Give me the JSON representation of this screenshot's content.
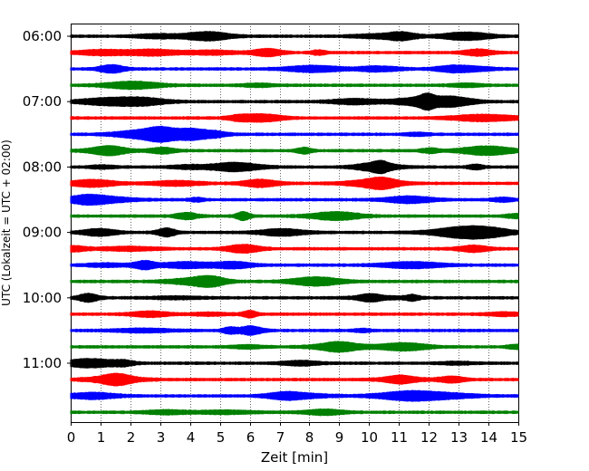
{
  "chart_data": {
    "type": "line",
    "title": "",
    "xlabel": "Zeit  [min]",
    "ylabel": "UTC (Lokalzeit = UTC + 02:00)",
    "xlim": [
      0,
      15
    ],
    "x_ticks": [
      "0",
      "1",
      "2",
      "3",
      "4",
      "5",
      "6",
      "7",
      "8",
      "9",
      "10",
      "11",
      "12",
      "13",
      "14",
      "15"
    ],
    "y_ticks": [
      "06:00",
      "07:00",
      "08:00",
      "09:00",
      "10:00",
      "11:00"
    ],
    "grid": "vertical dotted lines at each minute",
    "trace_interval_minutes": 15,
    "trace_start": "06:00",
    "trace_count": 24,
    "trace_color_cycle": [
      "#000000",
      "#ff0000",
      "#0000ff",
      "#008000"
    ]
  }
}
